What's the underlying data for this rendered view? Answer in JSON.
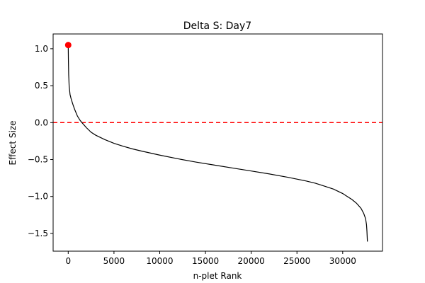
{
  "chart_data": {
    "type": "line",
    "title": "Delta S: Day7",
    "xlabel": "n-plet Rank",
    "ylabel": "Effect Size",
    "xlim": [
      -1650,
      34350
    ],
    "ylim": [
      -1.74,
      1.2
    ],
    "xticks": [
      0,
      5000,
      10000,
      15000,
      20000,
      25000,
      30000
    ],
    "xtick_labels": [
      "0",
      "5000",
      "10000",
      "15000",
      "20000",
      "25000",
      "30000"
    ],
    "yticks": [
      1.0,
      0.5,
      0.0,
      -0.5,
      -1.0,
      -1.5
    ],
    "ytick_labels": [
      "1.0",
      "0.5",
      "0.0",
      "−0.5",
      "−1.0",
      "−1.5"
    ],
    "grid": false,
    "series": [
      {
        "color": "#000000",
        "x": [
          0,
          20,
          50,
          100,
          200,
          300,
          400,
          500,
          700,
          1000,
          1300,
          1500,
          2000,
          2500,
          3000,
          4000,
          5000,
          6000,
          7000,
          8000,
          10000,
          12000,
          14000,
          16000,
          18000,
          20000,
          22000,
          24000,
          25000,
          26000,
          27000,
          28000,
          29000,
          30000,
          30500,
          31000,
          31500,
          32000,
          32300,
          32500,
          32600,
          32650,
          32700
        ],
        "y": [
          1.05,
          0.85,
          0.65,
          0.5,
          0.38,
          0.33,
          0.29,
          0.25,
          0.18,
          0.09,
          0.03,
          0.0,
          -0.07,
          -0.13,
          -0.17,
          -0.23,
          -0.28,
          -0.32,
          -0.355,
          -0.385,
          -0.44,
          -0.49,
          -0.535,
          -0.575,
          -0.615,
          -0.655,
          -0.695,
          -0.74,
          -0.765,
          -0.79,
          -0.82,
          -0.86,
          -0.9,
          -0.96,
          -1.0,
          -1.04,
          -1.09,
          -1.16,
          -1.23,
          -1.3,
          -1.38,
          -1.47,
          -1.61
        ]
      }
    ],
    "highlight_point": {
      "x": 0,
      "y": 1.05,
      "color": "#ff0000"
    },
    "reference_line": {
      "y": 0.0,
      "color": "#ff0000",
      "style": "dashed"
    }
  }
}
